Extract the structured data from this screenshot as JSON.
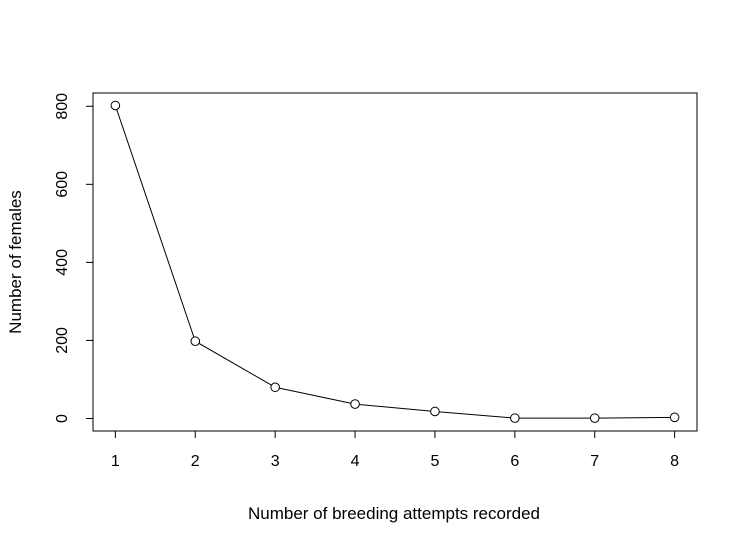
{
  "chart_data": {
    "type": "line",
    "title": "",
    "xlabel": "Number of breeding attempts recorded",
    "ylabel": "Number of females",
    "x": [
      1,
      2,
      3,
      4,
      5,
      6,
      7,
      8
    ],
    "series": [
      {
        "values": [
          802,
          198,
          80,
          37,
          18,
          1,
          1,
          3
        ]
      }
    ],
    "x_ticks": [
      "1",
      "2",
      "3",
      "4",
      "5",
      "6",
      "7",
      "8"
    ],
    "y_ticks": [
      "0",
      "200",
      "400",
      "600",
      "800"
    ],
    "xlim": [
      0.72,
      8.28
    ],
    "ylim": [
      -32,
      834
    ],
    "marker": "open-circle",
    "line_color": "#000000",
    "grid": false,
    "legend": "none"
  }
}
